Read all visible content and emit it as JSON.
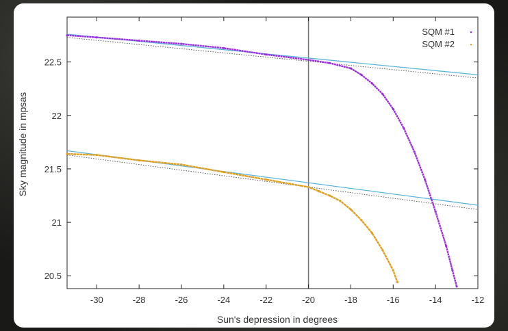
{
  "chart_data": {
    "type": "scatter",
    "xlabel": "Sun's depression in degrees",
    "ylabel": "Sky magnitude in mpsas",
    "xlim": [
      -31.4,
      -12
    ],
    "ylim": [
      20.38,
      22.92
    ],
    "xticks": [
      -30,
      -28,
      -26,
      -24,
      -22,
      -20,
      -18,
      -16,
      -14,
      -12
    ],
    "yticks": [
      20.5,
      21,
      21.5,
      22,
      22.5
    ],
    "xtick_labels": [
      "-30",
      "-28",
      "-26",
      "-24",
      "-22",
      "-20",
      "-18",
      "-16",
      "-14",
      "-12"
    ],
    "ytick_labels": [
      "20.5",
      "21",
      "21.5",
      "22",
      "22.5"
    ],
    "grid": false,
    "legend_position": "top-right",
    "vertical_marker_x": -20,
    "colors": {
      "sqm1": "#9b30e0",
      "sqm2": "#e0a020",
      "fit_solid": "#5ab4dc",
      "fit_dotted": "#555555",
      "marker": "#777777"
    },
    "series": [
      {
        "name": "SQM #1",
        "color": "#9b30e0",
        "points": [
          [
            -31.4,
            22.75
          ],
          [
            -30,
            22.73
          ],
          [
            -28,
            22.7
          ],
          [
            -26,
            22.67
          ],
          [
            -24,
            22.63
          ],
          [
            -22,
            22.57
          ],
          [
            -20,
            22.52
          ],
          [
            -19,
            22.49
          ],
          [
            -18,
            22.44
          ],
          [
            -17.5,
            22.38
          ],
          [
            -17,
            22.3
          ],
          [
            -16.5,
            22.2
          ],
          [
            -16,
            22.06
          ],
          [
            -15.5,
            21.88
          ],
          [
            -15,
            21.66
          ],
          [
            -14.5,
            21.4
          ],
          [
            -14,
            21.1
          ],
          [
            -13.5,
            20.78
          ],
          [
            -13.2,
            20.55
          ],
          [
            -13.0,
            20.4
          ]
        ]
      },
      {
        "name": "SQM #2",
        "color": "#e0a020",
        "points": [
          [
            -31.4,
            21.64
          ],
          [
            -30,
            21.63
          ],
          [
            -28,
            21.58
          ],
          [
            -26,
            21.54
          ],
          [
            -24,
            21.47
          ],
          [
            -22,
            21.4
          ],
          [
            -20,
            21.33
          ],
          [
            -19.5,
            21.29
          ],
          [
            -19,
            21.25
          ],
          [
            -18.5,
            21.2
          ],
          [
            -18,
            21.12
          ],
          [
            -17.5,
            21.02
          ],
          [
            -17,
            20.9
          ],
          [
            -16.5,
            20.74
          ],
          [
            -16,
            20.55
          ],
          [
            -15.8,
            20.44
          ]
        ]
      }
    ],
    "fit_lines": [
      {
        "style": "solid",
        "from": [
          -31.4,
          22.76
        ],
        "to": [
          -12,
          22.38
        ]
      },
      {
        "style": "dotted",
        "from": [
          -31.4,
          22.73
        ],
        "to": [
          -12,
          22.35
        ]
      },
      {
        "style": "solid",
        "from": [
          -31.4,
          21.67
        ],
        "to": [
          -12,
          21.16
        ]
      },
      {
        "style": "dotted",
        "from": [
          -31.4,
          21.63
        ],
        "to": [
          -12,
          21.12
        ]
      }
    ]
  }
}
